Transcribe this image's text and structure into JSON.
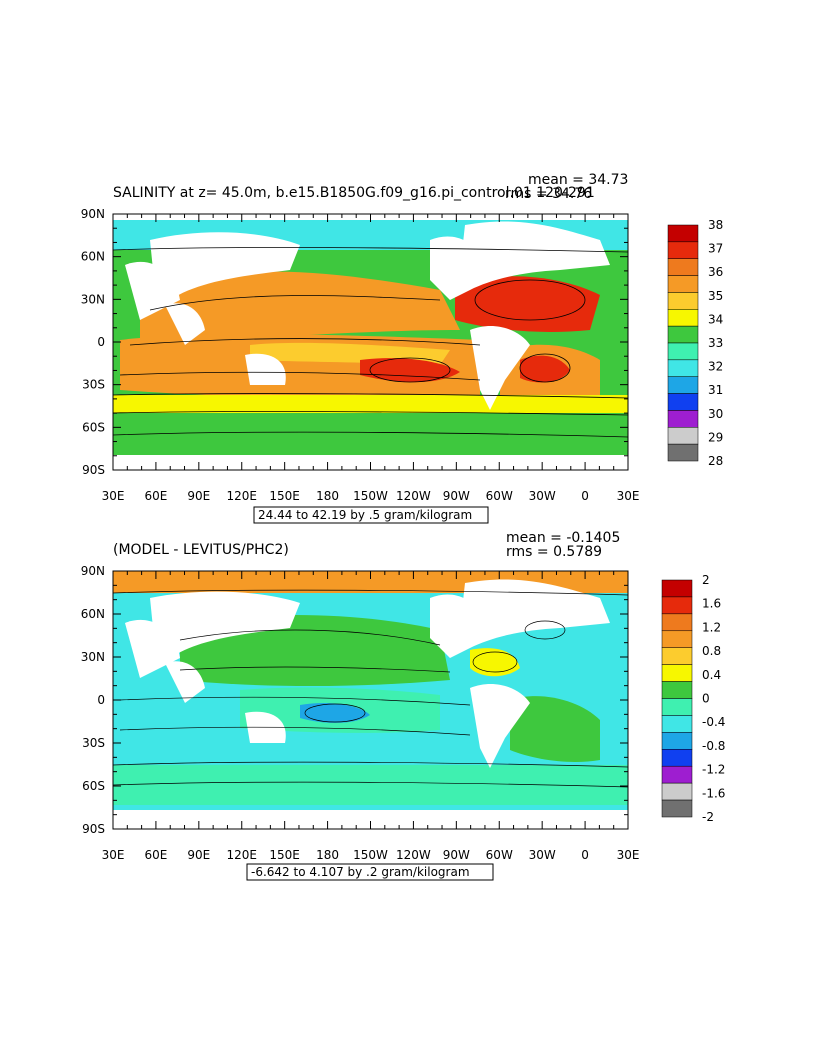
{
  "colors": {
    "land": "#ffffff",
    "frame": "#000000",
    "contour": "#000000"
  },
  "chart_data": [
    {
      "type": "heatmap",
      "title": "SALINITY at z=  45.0m, b.e15.B1850G.f09_g16.pi_control.01 120-291",
      "stats": [
        "mean = 34.73",
        "rms = 34.76"
      ],
      "x_ticks": [
        "30E",
        "60E",
        "90E",
        "120E",
        "150E",
        "180",
        "150W",
        "120W",
        "90W",
        "60W",
        "30W",
        "0",
        "30E"
      ],
      "y_ticks": [
        "90N",
        "60N",
        "30N",
        "0",
        "30S",
        "60S",
        "90S"
      ],
      "range_note": "24.44 to 42.19 by .5 gram/kilogram",
      "colorbar": {
        "labels": [
          "38",
          "37",
          "36",
          "35",
          "34",
          "33",
          "32",
          "31",
          "30",
          "29",
          "28"
        ],
        "colors": [
          "#c40000",
          "#e62a0c",
          "#ee7a1e",
          "#f59a26",
          "#fccc2e",
          "#f7f700",
          "#3ec83e",
          "#3ff0b0",
          "#40e6e6",
          "#1ea6e6",
          "#1040f0",
          "#9e1ed0",
          "#cccccc",
          "#707070"
        ]
      },
      "ocean_field": {
        "fill": "#3fc83f",
        "zones": [
          {
            "name": "arctic",
            "color": "#40e6e6"
          },
          {
            "name": "pacific-subtropical",
            "color": "#f59a26"
          },
          {
            "name": "pacific-equatorial",
            "color": "#fccc2e"
          },
          {
            "name": "north-atlantic-max",
            "color": "#e62a0c"
          },
          {
            "name": "south-atlantic-max",
            "color": "#e62a0c"
          },
          {
            "name": "indian",
            "color": "#f59a26"
          },
          {
            "name": "southern-yellow",
            "color": "#f7f700"
          },
          {
            "name": "southern-green",
            "color": "#3ec83e"
          }
        ]
      }
    },
    {
      "type": "heatmap",
      "title": "(MODEL - LEVITUS/PHC2)",
      "stats": [
        "mean = -0.1405",
        "rms = 0.5789"
      ],
      "x_ticks": [
        "30E",
        "60E",
        "90E",
        "120E",
        "150E",
        "180",
        "150W",
        "120W",
        "90W",
        "60W",
        "30W",
        "0",
        "30E"
      ],
      "y_ticks": [
        "90N",
        "60N",
        "30N",
        "0",
        "30S",
        "60S",
        "90S"
      ],
      "range_note": "-6.642 to 4.107 by .2 gram/kilogram",
      "colorbar": {
        "labels": [
          "2",
          "1.6",
          "1.2",
          "0.8",
          "0.4",
          "0",
          "-0.4",
          "-0.8",
          "-1.2",
          "-1.6",
          "-2"
        ],
        "colors": [
          "#c40000",
          "#e62a0c",
          "#ee7a1e",
          "#f59a26",
          "#fccc2e",
          "#f7f700",
          "#3ec83e",
          "#3ff0b0",
          "#40e6e6",
          "#1ea6e6",
          "#1040f0",
          "#9e1ed0",
          "#cccccc",
          "#707070"
        ]
      },
      "ocean_field": {
        "fill": "#40e6e6",
        "zones": [
          {
            "name": "arctic",
            "color": "#f59a26"
          },
          {
            "name": "north-pacific",
            "color": "#3ec83e"
          },
          {
            "name": "equatorial-pacific",
            "color": "#3ec83e"
          },
          {
            "name": "south-pacific-low",
            "color": "#1ea6e6"
          },
          {
            "name": "north-atlantic-high",
            "color": "#f7f700"
          },
          {
            "name": "southern-band",
            "color": "#3ff0b0"
          }
        ]
      }
    }
  ]
}
